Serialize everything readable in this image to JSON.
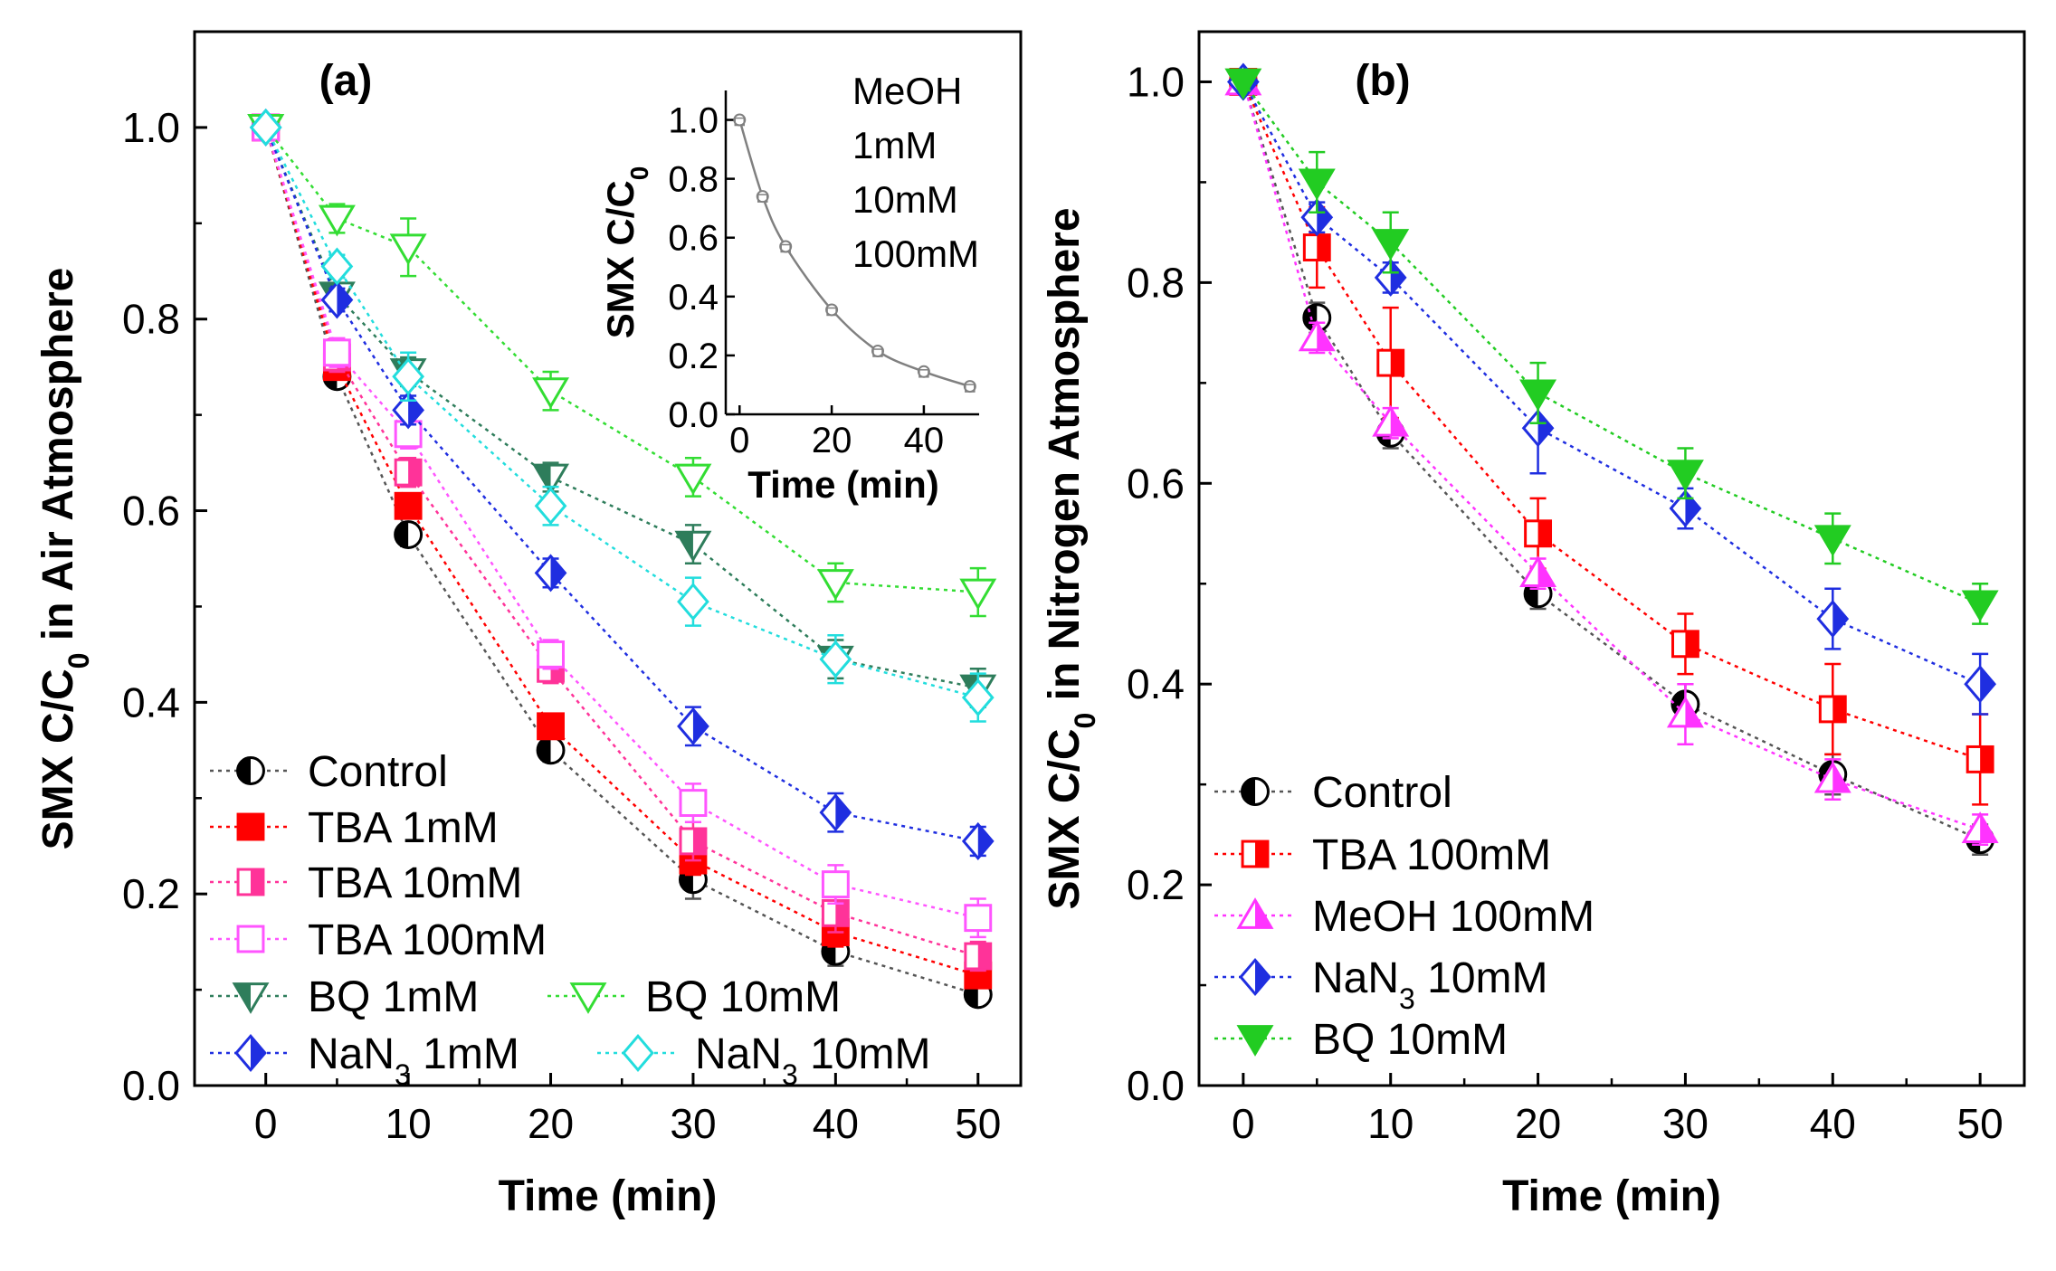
{
  "chart_data": [
    {
      "type": "line",
      "panel_label": "(a)",
      "xlabel": "Time (min)",
      "ylabel_parts": [
        "SMX C/C",
        "0",
        " in Air Atmosphere"
      ],
      "xlim": [
        -5,
        53
      ],
      "ylim": [
        0,
        1.1
      ],
      "xticks": [
        0,
        10,
        20,
        30,
        40,
        50
      ],
      "yticks": [
        0.0,
        0.2,
        0.4,
        0.6,
        0.8,
        1.0
      ],
      "x": [
        0,
        5,
        10,
        20,
        30,
        40,
        50
      ],
      "legend_position": "bottom-left",
      "series": [
        {
          "name": "Control",
          "color": "#555555",
          "marker": "circle-half",
          "values": [
            1.0,
            0.74,
            0.575,
            0.35,
            0.215,
            0.14,
            0.095
          ],
          "err": [
            0,
            0.01,
            0.012,
            0.012,
            0.02,
            0.015,
            0.01
          ]
        },
        {
          "name": "TBA 1mM",
          "color": "#ff0000",
          "marker": "square-filled",
          "values": [
            1.0,
            0.75,
            0.605,
            0.375,
            0.235,
            0.16,
            0.115
          ],
          "err": [
            0,
            0.01,
            0.012,
            0.012,
            0.015,
            0.015,
            0.01
          ]
        },
        {
          "name": "TBA 10mM",
          "color": "#ff3399",
          "marker": "square-half",
          "values": [
            1.0,
            0.76,
            0.64,
            0.435,
            0.255,
            0.18,
            0.135
          ],
          "err": [
            0,
            0.015,
            0.015,
            0.015,
            0.02,
            0.02,
            0.015
          ]
        },
        {
          "name": "TBA 100mM",
          "color": "#ff55ff",
          "marker": "square-open",
          "values": [
            1.0,
            0.765,
            0.68,
            0.45,
            0.295,
            0.21,
            0.175
          ],
          "err": [
            0,
            0.015,
            0.015,
            0.015,
            0.02,
            0.02,
            0.02
          ]
        },
        {
          "name": "BQ 1mM",
          "color": "#2e7d5b",
          "marker": "tri-down-half",
          "values": [
            1.0,
            0.825,
            0.745,
            0.635,
            0.565,
            0.445,
            0.415
          ],
          "err": [
            0,
            0.012,
            0.015,
            0.015,
            0.02,
            0.02,
            0.02
          ]
        },
        {
          "name": "BQ 10mM",
          "color": "#33dd33",
          "marker": "tri-down-open",
          "values": [
            1.0,
            0.905,
            0.875,
            0.725,
            0.635,
            0.525,
            0.515
          ],
          "err": [
            0,
            0.015,
            0.03,
            0.02,
            0.02,
            0.02,
            0.025
          ]
        },
        {
          "name": "NaN3 1mM",
          "color": "#1f2ee0",
          "marker": "diamond-half",
          "values": [
            1.0,
            0.82,
            0.705,
            0.535,
            0.375,
            0.285,
            0.255
          ],
          "err": [
            0,
            0.012,
            0.015,
            0.015,
            0.02,
            0.02,
            0.015
          ]
        },
        {
          "name": "NaN3 10mM",
          "color": "#22dddd",
          "marker": "diamond-open",
          "values": [
            1.0,
            0.855,
            0.74,
            0.605,
            0.505,
            0.445,
            0.405
          ],
          "err": [
            0,
            0.012,
            0.025,
            0.02,
            0.025,
            0.025,
            0.025
          ]
        }
      ],
      "legend_labels": [
        [
          "Control"
        ],
        [
          "TBA 1mM"
        ],
        [
          "TBA 10mM"
        ],
        [
          "TBA 100mM"
        ],
        [
          "BQ 1mM"
        ],
        [
          "BQ 10mM"
        ],
        [
          "NaN",
          "3",
          " 1mM"
        ],
        [
          "NaN",
          "3",
          " 10mM"
        ]
      ],
      "inset": {
        "xlabel": "Time (min)",
        "ylabel_parts": [
          "SMX C/C",
          "0"
        ],
        "xlim": [
          -3,
          52
        ],
        "ylim": [
          0,
          1.1
        ],
        "xticks": [
          0,
          20,
          40
        ],
        "yticks": [
          0.0,
          0.2,
          0.4,
          0.6,
          0.8,
          1.0
        ],
        "x": [
          0,
          5,
          10,
          20,
          30,
          40,
          50
        ],
        "values": [
          1.0,
          0.74,
          0.57,
          0.355,
          0.215,
          0.145,
          0.095
        ],
        "color": "#808080",
        "note_lines": [
          "MeOH",
          "1mM",
          "10mM",
          "100mM"
        ]
      }
    },
    {
      "type": "line",
      "panel_label": "(b)",
      "xlabel": "Time (min)",
      "ylabel_parts": [
        "SMX C/C",
        "0",
        " in Nitrogen Atmosphere"
      ],
      "xlim": [
        -3,
        53
      ],
      "ylim": [
        0,
        1.05
      ],
      "xticks": [
        0,
        10,
        20,
        30,
        40,
        50
      ],
      "yticks": [
        0.0,
        0.2,
        0.4,
        0.6,
        0.8,
        1.0
      ],
      "x": [
        0,
        5,
        10,
        20,
        30,
        40,
        50
      ],
      "legend_position": "bottom-left",
      "series": [
        {
          "name": "Control",
          "color": "#555555",
          "marker": "circle-half",
          "values": [
            1.0,
            0.765,
            0.65,
            0.49,
            0.38,
            0.31,
            0.245
          ],
          "err": [
            0,
            0.015,
            0.015,
            0.015,
            0.02,
            0.02,
            0.015
          ]
        },
        {
          "name": "TBA 100mM",
          "color": "#ff0000",
          "marker": "square-half",
          "values": [
            1.0,
            0.835,
            0.72,
            0.55,
            0.44,
            0.375,
            0.325
          ],
          "err": [
            0,
            0.04,
            0.055,
            0.035,
            0.03,
            0.045,
            0.045
          ]
        },
        {
          "name": "MeOH 100mM",
          "color": "#ff33ff",
          "marker": "tri-up-half",
          "values": [
            1.0,
            0.745,
            0.66,
            0.51,
            0.37,
            0.305,
            0.255
          ],
          "err": [
            0,
            0.015,
            0.015,
            0.015,
            0.03,
            0.02,
            0.015
          ]
        },
        {
          "name": "NaN3 10mM",
          "color": "#1f2ee0",
          "marker": "diamond-half",
          "values": [
            1.0,
            0.865,
            0.805,
            0.655,
            0.575,
            0.465,
            0.4
          ],
          "err": [
            0,
            0.015,
            0.015,
            0.045,
            0.02,
            0.03,
            0.03
          ]
        },
        {
          "name": "BQ 10mM",
          "color": "#22cc22",
          "marker": "tri-down-filled",
          "values": [
            1.0,
            0.9,
            0.84,
            0.69,
            0.61,
            0.545,
            0.48
          ],
          "err": [
            0,
            0.03,
            0.03,
            0.03,
            0.025,
            0.025,
            0.02
          ]
        }
      ],
      "legend_labels": [
        [
          "Control"
        ],
        [
          "TBA 100mM"
        ],
        [
          "MeOH 100mM"
        ],
        [
          "NaN",
          "3",
          " 10mM"
        ],
        [
          "BQ 10mM"
        ]
      ]
    }
  ]
}
